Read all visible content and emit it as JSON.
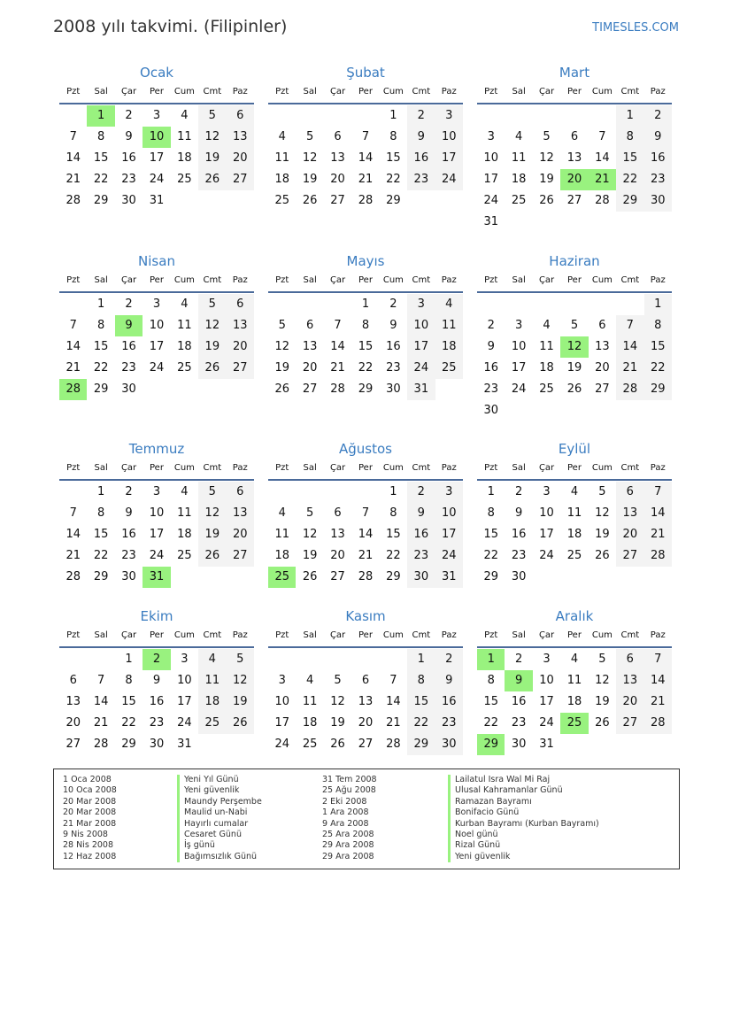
{
  "header": {
    "title": "2008 yılı takvimi. (Filipinler)",
    "brand": "TIMESLES.COM"
  },
  "year": 2008,
  "weekdays": [
    "Pzt",
    "Sal",
    "Çar",
    "Per",
    "Cum",
    "Cmt",
    "Paz"
  ],
  "months": [
    {
      "name": "Ocak",
      "holidays": [
        1,
        10
      ]
    },
    {
      "name": "Şubat",
      "holidays": []
    },
    {
      "name": "Mart",
      "holidays": [
        20,
        21
      ]
    },
    {
      "name": "Nisan",
      "holidays": [
        9,
        28
      ]
    },
    {
      "name": "Mayıs",
      "holidays": []
    },
    {
      "name": "Haziran",
      "holidays": [
        12
      ]
    },
    {
      "name": "Temmuz",
      "holidays": [
        31
      ]
    },
    {
      "name": "Ağustos",
      "holidays": [
        25
      ]
    },
    {
      "name": "Eylül",
      "holidays": []
    },
    {
      "name": "Ekim",
      "holidays": [
        2
      ]
    },
    {
      "name": "Kasım",
      "holidays": []
    },
    {
      "name": "Aralık",
      "holidays": [
        1,
        9,
        25,
        29
      ]
    }
  ],
  "colors": {
    "holiday": "#99f27f",
    "weekend": "#f3f3f3",
    "accent": "#3a7cc0"
  },
  "holiday_list": [
    {
      "date": "1 Oca 2008",
      "name": "Yeni Yıl Günü"
    },
    {
      "date": "10 Oca 2008",
      "name": "Yeni güvenlik"
    },
    {
      "date": "20 Mar 2008",
      "name": "Maundy Perşembe"
    },
    {
      "date": "20 Mar 2008",
      "name": "Maulid un-Nabi"
    },
    {
      "date": "21 Mar 2008",
      "name": "Hayırlı cumalar"
    },
    {
      "date": "9 Nis 2008",
      "name": "Cesaret Günü"
    },
    {
      "date": "28 Nis 2008",
      "name": "İş günü"
    },
    {
      "date": "12 Haz 2008",
      "name": "Bağımsızlık Günü"
    },
    {
      "date": "31 Tem 2008",
      "name": "Lailatul Isra Wal Mi Raj"
    },
    {
      "date": "25 Ağu 2008",
      "name": "Ulusal Kahramanlar Günü"
    },
    {
      "date": "2 Eki 2008",
      "name": "Ramazan Bayramı"
    },
    {
      "date": "1 Ara 2008",
      "name": "Bonifacio Günü"
    },
    {
      "date": "9 Ara 2008",
      "name": "Kurban Bayramı (Kurban Bayramı)"
    },
    {
      "date": "25 Ara 2008",
      "name": "Noel günü"
    },
    {
      "date": "29 Ara 2008",
      "name": "Rizal Günü"
    },
    {
      "date": "29 Ara 2008",
      "name": "Yeni güvenlik"
    }
  ]
}
